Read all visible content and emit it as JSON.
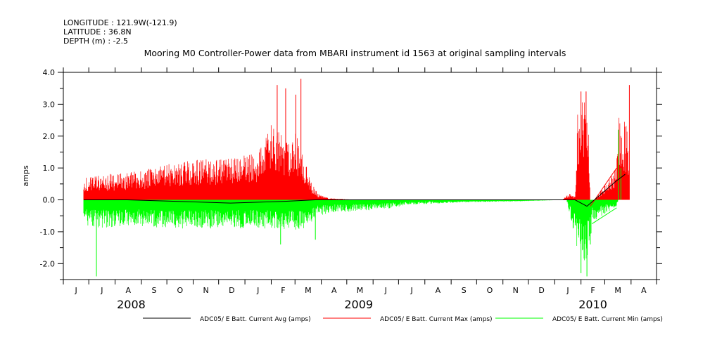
{
  "header": {
    "longitude": "LONGITUDE : 121.9W(-121.9)",
    "latitude": "LATITUDE : 36.8N",
    "depth": "DEPTH (m) : -2.5",
    "title": "Mooring M0 Controller-Power data from MBARI instrument id 1563 at original sampling intervals"
  },
  "chart_data": {
    "type": "line",
    "ylabel": "amps",
    "ylim": [
      -2.5,
      4.0
    ],
    "y_ticks": [
      "-2.0",
      "-1.0",
      "0.0",
      "1.0",
      "2.0",
      "3.0",
      "4.0"
    ],
    "x_range_months": [
      "2008-06",
      "2010-04"
    ],
    "x_month_labels": [
      "J",
      "J",
      "A",
      "S",
      "O",
      "N",
      "D",
      "J",
      "F",
      "M",
      "A",
      "M",
      "J",
      "J",
      "A",
      "S",
      "O",
      "N",
      "D",
      "J",
      "F",
      "M",
      "A"
    ],
    "years": [
      "2008",
      "2009",
      "2010"
    ],
    "grid": false,
    "legend_position": "bottom",
    "series": [
      {
        "name": "ADC05/ E Batt. Current Avg (amps)",
        "color": "#000000",
        "points": [
          [
            "2008-06-25",
            0.0
          ],
          [
            "2008-08-15",
            0.0
          ],
          [
            "2008-10-15",
            -0.05
          ],
          [
            "2008-12-15",
            -0.1
          ],
          [
            "2009-02-15",
            -0.05
          ],
          [
            "2009-03-25",
            0.0
          ],
          [
            "2009-06-15",
            0.0
          ],
          [
            "2009-10-15",
            0.0
          ],
          [
            "2010-01-15",
            0.0
          ],
          [
            "2010-01-25",
            0.0
          ],
          [
            "2010-02-08",
            -0.2
          ],
          [
            "2010-03-15",
            0.6
          ],
          [
            "2010-03-25",
            0.8
          ]
        ]
      },
      {
        "name": "ADC05/ E Batt. Current Max (amps)",
        "color": "#ff0000",
        "envelope": [
          [
            "2008-06-25",
            0.7
          ],
          [
            "2008-07-15",
            0.8
          ],
          [
            "2008-08-15",
            0.85
          ],
          [
            "2008-09-15",
            1.0
          ],
          [
            "2008-10-15",
            1.2
          ],
          [
            "2008-11-15",
            1.3
          ],
          [
            "2008-12-15",
            1.3
          ],
          [
            "2009-01-15",
            1.5
          ],
          [
            "2009-02-01",
            2.4
          ],
          [
            "2009-02-15",
            2.0
          ],
          [
            "2009-03-01",
            2.2
          ],
          [
            "2009-03-20",
            0.6
          ],
          [
            "2009-03-28",
            0.2
          ],
          [
            "2009-04-10",
            0.05
          ],
          [
            "2009-05-15",
            0.0
          ],
          [
            "2010-01-10",
            0.0
          ],
          [
            "2010-01-18",
            0.2
          ],
          [
            "2010-01-25",
            0.1
          ],
          [
            "2010-01-28",
            3.0
          ],
          [
            "2010-02-05",
            3.2
          ],
          [
            "2010-02-10",
            3.0
          ],
          [
            "2010-02-12",
            -0.2
          ],
          [
            "2010-03-15",
            1.0
          ],
          [
            "2010-03-17",
            2.8
          ],
          [
            "2010-03-28",
            2.3
          ],
          [
            "2010-03-30",
            1.5
          ]
        ],
        "spikes": [
          [
            "2009-02-08",
            3.6
          ],
          [
            "2009-02-18",
            3.5
          ],
          [
            "2009-03-08",
            3.8
          ],
          [
            "2009-03-02",
            3.3
          ],
          [
            "2010-02-01",
            3.4
          ],
          [
            "2010-02-07",
            3.4
          ],
          [
            "2010-03-30",
            3.6
          ]
        ]
      },
      {
        "name": "ADC05/ E Batt. Current Min (amps)",
        "color": "#00ff00",
        "envelope": [
          [
            "2008-06-25",
            -0.8
          ],
          [
            "2008-07-15",
            -0.9
          ],
          [
            "2008-08-15",
            -0.8
          ],
          [
            "2008-09-15",
            -0.9
          ],
          [
            "2008-10-15",
            -0.9
          ],
          [
            "2008-11-15",
            -0.9
          ],
          [
            "2008-12-15",
            -0.9
          ],
          [
            "2009-01-15",
            -0.9
          ],
          [
            "2009-02-15",
            -1.0
          ],
          [
            "2009-03-15",
            -0.9
          ],
          [
            "2009-03-28",
            -0.5
          ],
          [
            "2009-04-15",
            -0.4
          ],
          [
            "2009-05-15",
            -0.35
          ],
          [
            "2009-06-15",
            -0.3
          ],
          [
            "2009-07-15",
            -0.15
          ],
          [
            "2009-09-15",
            -0.08
          ],
          [
            "2009-11-15",
            -0.05
          ],
          [
            "2010-01-15",
            0.0
          ],
          [
            "2010-01-28",
            -1.6
          ],
          [
            "2010-02-05",
            -2.0
          ],
          [
            "2010-02-12",
            -1.5
          ],
          [
            "2010-02-14",
            -0.7
          ],
          [
            "2010-03-15",
            -0.2
          ],
          [
            "2010-03-17",
            0.0
          ],
          [
            "2010-03-30",
            0.0
          ]
        ],
        "spikes": [
          [
            "2008-07-10",
            -2.4
          ],
          [
            "2009-02-12",
            -1.4
          ],
          [
            "2009-03-25",
            -1.25
          ],
          [
            "2010-02-01",
            -2.3
          ],
          [
            "2010-02-08",
            -2.4
          ],
          [
            "2010-02-12",
            -1.4
          ],
          [
            "2010-03-17",
            2.2
          ],
          [
            "2010-03-20",
            1.0
          ]
        ]
      }
    ]
  }
}
